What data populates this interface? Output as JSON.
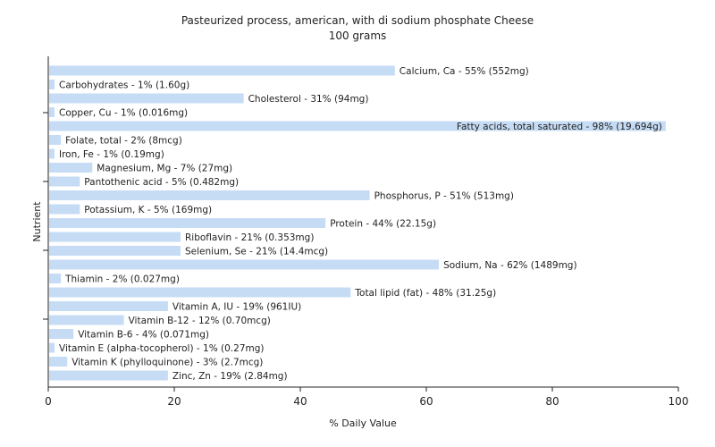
{
  "chart_data": {
    "type": "bar",
    "orientation": "horizontal",
    "title": "Pasteurized process, american, with di sodium phosphate Cheese",
    "subtitle": "100 grams",
    "xlabel": "% Daily Value",
    "ylabel": "Nutrient",
    "xlim": [
      0,
      100
    ],
    "xticks": [
      "0",
      "20",
      "40",
      "60",
      "80",
      "100"
    ],
    "bar_color": "#c6dcf5",
    "categories": [
      "Calcium, Ca - 55% (552mg)",
      "Carbohydrates - 1% (1.60g)",
      "Cholesterol - 31% (94mg)",
      "Copper, Cu - 1% (0.016mg)",
      "Fatty acids, total saturated - 98% (19.694g)",
      "Folate, total - 2% (8mcg)",
      "Iron, Fe - 1% (0.19mg)",
      "Magnesium, Mg - 7% (27mg)",
      "Pantothenic acid - 5% (0.482mg)",
      "Phosphorus, P - 51% (513mg)",
      "Potassium, K - 5% (169mg)",
      "Protein - 44% (22.15g)",
      "Riboflavin - 21% (0.353mg)",
      "Selenium, Se - 21% (14.4mcg)",
      "Sodium, Na - 62% (1489mg)",
      "Thiamin - 2% (0.027mg)",
      "Total lipid (fat) - 48% (31.25g)",
      "Vitamin A, IU - 19% (961IU)",
      "Vitamin B-12 - 12% (0.70mcg)",
      "Vitamin B-6 - 4% (0.071mg)",
      "Vitamin E (alpha-tocopherol) - 1% (0.27mg)",
      "Vitamin K (phylloquinone) - 3% (2.7mcg)",
      "Zinc, Zn - 19% (2.84mg)"
    ],
    "values": [
      55,
      1,
      31,
      1,
      98,
      2,
      1,
      7,
      5,
      51,
      5,
      44,
      21,
      21,
      62,
      2,
      48,
      19,
      12,
      4,
      1,
      3,
      19
    ]
  }
}
